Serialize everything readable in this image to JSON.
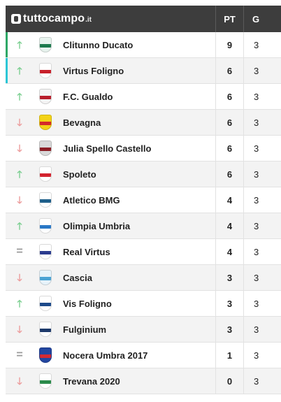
{
  "brand": {
    "name": "tuttocampo",
    "tld": ".it"
  },
  "columns": {
    "pt": "PT",
    "g": "G"
  },
  "colors": {
    "header_bg": "#3d3d3d",
    "trend_up": "#7ccf91",
    "trend_down": "#ec9c9c",
    "trend_same": "#9a9a9a",
    "qualify_green": "#2ea866",
    "qualify_cyan": "#2cc6d6"
  },
  "rows": [
    {
      "team": "Clitunno Ducato",
      "pt": "9",
      "g": "3",
      "trend": "up",
      "trend_symbol": "🡑",
      "qualify": "#2ea866",
      "crest": [
        "#e8f3ee",
        "#1d7a4e"
      ]
    },
    {
      "team": "Virtus Foligno",
      "pt": "6",
      "g": "3",
      "trend": "up",
      "trend_symbol": "🡑",
      "qualify": "#2cc6d6",
      "crest": [
        "#ffffff",
        "#c8202a"
      ]
    },
    {
      "team": "F.C. Gualdo",
      "pt": "6",
      "g": "3",
      "trend": "up",
      "trend_symbol": "🡑",
      "qualify": "",
      "crest": [
        "#f4f4f4",
        "#b81e2b"
      ]
    },
    {
      "team": "Bevagna",
      "pt": "6",
      "g": "3",
      "trend": "down",
      "trend_symbol": "🡓",
      "qualify": "",
      "crest": [
        "#f3d317",
        "#d42a2a"
      ]
    },
    {
      "team": "Julia Spello Castello",
      "pt": "6",
      "g": "3",
      "trend": "down",
      "trend_symbol": "🡓",
      "qualify": "",
      "crest": [
        "#d9d9d9",
        "#8c1d24"
      ]
    },
    {
      "team": "Spoleto",
      "pt": "6",
      "g": "3",
      "trend": "up",
      "trend_symbol": "🡑",
      "qualify": "",
      "crest": [
        "#ffffff",
        "#d3232f"
      ]
    },
    {
      "team": "Atletico BMG",
      "pt": "4",
      "g": "3",
      "trend": "down",
      "trend_symbol": "🡓",
      "qualify": "",
      "crest": [
        "#ffffff",
        "#1f5f8a"
      ]
    },
    {
      "team": "Olimpia Umbria",
      "pt": "4",
      "g": "3",
      "trend": "up",
      "trend_symbol": "🡑",
      "qualify": "",
      "crest": [
        "#ffffff",
        "#2a78c6"
      ]
    },
    {
      "team": "Real Virtus",
      "pt": "4",
      "g": "3",
      "trend": "same",
      "trend_symbol": "=",
      "qualify": "",
      "crest": [
        "#ffffff",
        "#2b3c8f"
      ]
    },
    {
      "team": "Cascia",
      "pt": "3",
      "g": "3",
      "trend": "down",
      "trend_symbol": "🡓",
      "qualify": "",
      "crest": [
        "#e7f3fa",
        "#4aa3d4"
      ]
    },
    {
      "team": "Vis Foligno",
      "pt": "3",
      "g": "3",
      "trend": "up",
      "trend_symbol": "🡑",
      "qualify": "",
      "crest": [
        "#ffffff",
        "#1d4a8a"
      ]
    },
    {
      "team": "Fulginium",
      "pt": "3",
      "g": "3",
      "trend": "down",
      "trend_symbol": "🡓",
      "qualify": "",
      "crest": [
        "#ffffff",
        "#1e3a6b"
      ]
    },
    {
      "team": "Nocera Umbra 2017",
      "pt": "1",
      "g": "3",
      "trend": "same",
      "trend_symbol": "=",
      "qualify": "",
      "crest": [
        "#2346a0",
        "#d52a33"
      ]
    },
    {
      "team": "Trevana 2020",
      "pt": "0",
      "g": "3",
      "trend": "down",
      "trend_symbol": "🡓",
      "qualify": "",
      "crest": [
        "#ffffff",
        "#2a8a4a"
      ]
    }
  ]
}
